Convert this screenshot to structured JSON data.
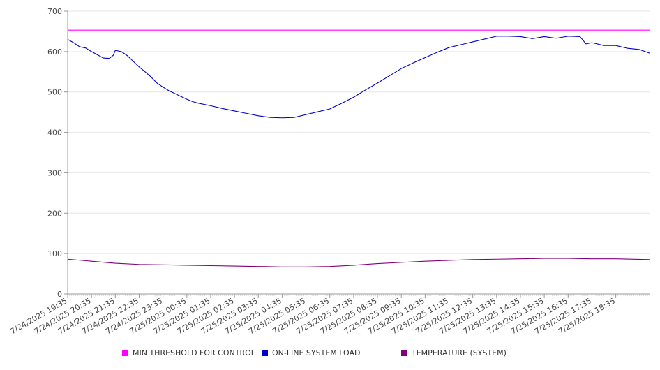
{
  "chart_data": {
    "type": "line",
    "title": "",
    "xlabel": "",
    "ylabel": "",
    "ylim": [
      0,
      700
    ],
    "y_ticks": [
      0,
      100,
      200,
      300,
      400,
      500,
      600,
      700
    ],
    "x_tick_labels": [
      "7/24/2025 19:35",
      "7/24/2025 20:35",
      "7/24/2025 21:35",
      "7/24/2025 22:35",
      "7/24/2025 23:35",
      "7/25/2025 00:35",
      "7/25/2025 01:35",
      "7/25/2025 02:35",
      "7/25/2025 03:35",
      "7/25/2025 04:35",
      "7/25/2025 05:35",
      "7/25/2025 06:35",
      "7/25/2025 07:35",
      "7/25/2025 08:35",
      "7/25/2025 09:35",
      "7/25/2025 10:35",
      "7/25/2025 11:35",
      "7/25/2025 12:35",
      "7/25/2025 13:35",
      "7/25/2025 14:35",
      "7/25/2025 15:35",
      "7/25/2025 16:35",
      "7/25/2025 17:35",
      "7/25/2025 18:35"
    ],
    "x_range": [
      "7/24/2025 19:35",
      "7/25/2025 20:00"
    ],
    "grid": "horizontal",
    "legend_position": "bottom",
    "series": [
      {
        "name": "MIN THRESHOLD FOR CONTROL",
        "color": "#ff00ff",
        "points": [
          [
            "7/24/2025 19:35",
            653
          ],
          [
            "7/25/2025 20:00",
            653
          ]
        ]
      },
      {
        "name": "ON-LINE SYSTEM LOAD",
        "color": "#0000cc",
        "points": [
          [
            "7/24/2025 19:35",
            630
          ],
          [
            "7/24/2025 19:50",
            622
          ],
          [
            "7/24/2025 20:05",
            612
          ],
          [
            "7/24/2025 20:20",
            609
          ],
          [
            "7/24/2025 20:35",
            600
          ],
          [
            "7/24/2025 20:50",
            592
          ],
          [
            "7/24/2025 21:05",
            584
          ],
          [
            "7/24/2025 21:20",
            583
          ],
          [
            "7/24/2025 21:30",
            591
          ],
          [
            "7/24/2025 21:35",
            603
          ],
          [
            "7/24/2025 21:50",
            600
          ],
          [
            "7/24/2025 22:05",
            590
          ],
          [
            "7/24/2025 22:20",
            576
          ],
          [
            "7/24/2025 22:35",
            562
          ],
          [
            "7/24/2025 22:50",
            550
          ],
          [
            "7/24/2025 23:05",
            537
          ],
          [
            "7/24/2025 23:20",
            522
          ],
          [
            "7/24/2025 23:35",
            512
          ],
          [
            "7/24/2025 23:50",
            503
          ],
          [
            "7/25/2025 00:05",
            496
          ],
          [
            "7/25/2025 00:20",
            489
          ],
          [
            "7/25/2025 00:35",
            482
          ],
          [
            "7/25/2025 00:50",
            476
          ],
          [
            "7/25/2025 01:05",
            472
          ],
          [
            "7/25/2025 01:35",
            466
          ],
          [
            "7/25/2025 02:05",
            459
          ],
          [
            "7/25/2025 02:35",
            453
          ],
          [
            "7/25/2025 03:05",
            447
          ],
          [
            "7/25/2025 03:35",
            441
          ],
          [
            "7/25/2025 04:05",
            437
          ],
          [
            "7/25/2025 04:35",
            436
          ],
          [
            "7/25/2025 05:05",
            437
          ],
          [
            "7/25/2025 05:35",
            444
          ],
          [
            "7/25/2025 06:05",
            451
          ],
          [
            "7/25/2025 06:35",
            458
          ],
          [
            "7/25/2025 07:05",
            472
          ],
          [
            "7/25/2025 07:35",
            487
          ],
          [
            "7/25/2025 08:05",
            505
          ],
          [
            "7/25/2025 08:35",
            522
          ],
          [
            "7/25/2025 09:05",
            540
          ],
          [
            "7/25/2025 09:35",
            558
          ],
          [
            "7/25/2025 10:05",
            572
          ],
          [
            "7/25/2025 10:35",
            585
          ],
          [
            "7/25/2025 11:05",
            598
          ],
          [
            "7/25/2025 11:35",
            610
          ],
          [
            "7/25/2025 12:05",
            617
          ],
          [
            "7/25/2025 12:35",
            624
          ],
          [
            "7/25/2025 13:05",
            631
          ],
          [
            "7/25/2025 13:35",
            638
          ],
          [
            "7/25/2025 14:05",
            638
          ],
          [
            "7/25/2025 14:35",
            637
          ],
          [
            "7/25/2025 15:05",
            632
          ],
          [
            "7/25/2025 15:35",
            637
          ],
          [
            "7/25/2025 16:05",
            633
          ],
          [
            "7/25/2025 16:35",
            638
          ],
          [
            "7/25/2025 17:05",
            637
          ],
          [
            "7/25/2025 17:20",
            619
          ],
          [
            "7/25/2025 17:35",
            622
          ],
          [
            "7/25/2025 18:05",
            615
          ],
          [
            "7/25/2025 18:35",
            615
          ],
          [
            "7/25/2025 19:05",
            608
          ],
          [
            "7/25/2025 19:35",
            605
          ],
          [
            "7/25/2025 20:00",
            596
          ]
        ]
      },
      {
        "name": "TEMPERATURE (SYSTEM)",
        "color": "#800080",
        "points": [
          [
            "7/24/2025 19:35",
            86
          ],
          [
            "7/24/2025 20:35",
            81
          ],
          [
            "7/24/2025 21:35",
            76
          ],
          [
            "7/24/2025 22:35",
            73
          ],
          [
            "7/24/2025 23:35",
            72
          ],
          [
            "7/25/2025 00:35",
            71
          ],
          [
            "7/25/2025 01:35",
            70
          ],
          [
            "7/25/2025 02:35",
            69
          ],
          [
            "7/25/2025 03:35",
            68
          ],
          [
            "7/25/2025 04:35",
            67
          ],
          [
            "7/25/2025 05:35",
            67
          ],
          [
            "7/25/2025 06:35",
            68
          ],
          [
            "7/25/2025 07:35",
            71
          ],
          [
            "7/25/2025 08:35",
            75
          ],
          [
            "7/25/2025 09:35",
            78
          ],
          [
            "7/25/2025 10:35",
            81
          ],
          [
            "7/25/2025 11:35",
            83
          ],
          [
            "7/25/2025 12:35",
            85
          ],
          [
            "7/25/2025 13:35",
            86
          ],
          [
            "7/25/2025 14:35",
            87
          ],
          [
            "7/25/2025 15:35",
            88
          ],
          [
            "7/25/2025 16:35",
            88
          ],
          [
            "7/25/2025 17:35",
            87
          ],
          [
            "7/25/2025 18:35",
            87
          ],
          [
            "7/25/2025 20:00",
            85
          ]
        ]
      }
    ]
  }
}
